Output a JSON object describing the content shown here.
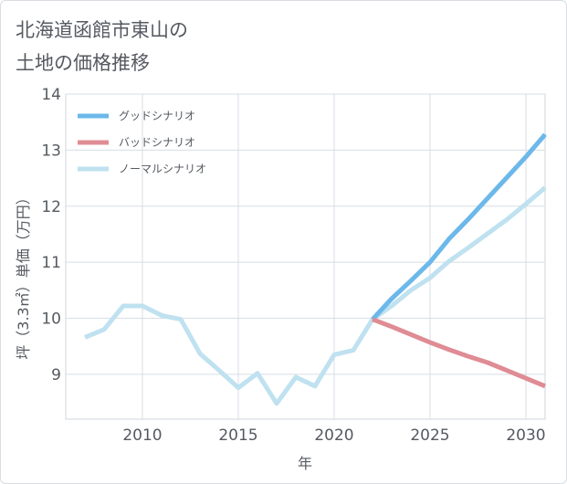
{
  "title_lines": [
    "北海道函館市東山の",
    "土地の価格推移"
  ],
  "chart_data": {
    "type": "line",
    "xlabel": "年",
    "ylabel": "坪（3.3㎡）単価（万円）",
    "xlim": [
      2006,
      2031
    ],
    "ylim": [
      8.2,
      14
    ],
    "x_ticks": [
      2010,
      2015,
      2020,
      2025,
      2030
    ],
    "y_ticks": [
      9,
      10,
      11,
      12,
      13,
      14
    ],
    "grid": true,
    "legend_position": "top-left",
    "series": [
      {
        "name": "グッドシナリオ",
        "color": "#6cb8ea",
        "x": [
          2022,
          2023,
          2024,
          2025,
          2026,
          2027,
          2028,
          2029,
          2030,
          2031
        ],
        "y": [
          9.98,
          10.35,
          10.67,
          11.0,
          11.42,
          11.77,
          12.14,
          12.51,
          12.88,
          13.28
        ]
      },
      {
        "name": "バッドシナリオ",
        "color": "#df8c94",
        "x": [
          2022,
          2023,
          2024,
          2025,
          2026,
          2027,
          2028,
          2029,
          2030,
          2031
        ],
        "y": [
          9.98,
          9.85,
          9.71,
          9.57,
          9.44,
          9.32,
          9.21,
          9.07,
          8.93,
          8.79
        ]
      },
      {
        "name": "ノーマルシナリオ",
        "color": "#bfe1f0",
        "x": [
          2007,
          2008,
          2009,
          2010,
          2011,
          2012,
          2013,
          2014,
          2015,
          2016,
          2017,
          2018,
          2019,
          2020,
          2021,
          2022,
          2023,
          2024,
          2025,
          2026,
          2027,
          2028,
          2029,
          2030,
          2031
        ],
        "y": [
          9.66,
          9.8,
          10.22,
          10.22,
          10.05,
          9.98,
          9.37,
          9.07,
          8.76,
          9.02,
          8.48,
          8.95,
          8.79,
          9.35,
          9.43,
          9.98,
          10.22,
          10.5,
          10.72,
          11.02,
          11.26,
          11.51,
          11.76,
          12.04,
          12.33
        ]
      }
    ]
  }
}
